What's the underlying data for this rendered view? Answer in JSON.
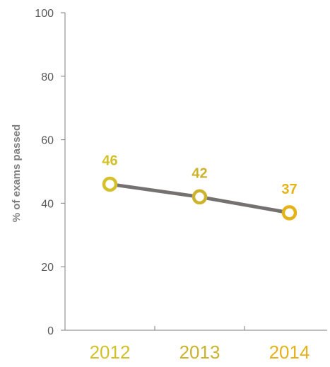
{
  "chart_data": {
    "type": "line",
    "title": "",
    "xlabel": "",
    "ylabel": "% of exams passed",
    "categories": [
      "2012",
      "2013",
      "2014"
    ],
    "series": [
      {
        "values": [
          46,
          42,
          37
        ]
      }
    ],
    "ylim": [
      0,
      100
    ],
    "yticks": [
      0,
      20,
      40,
      60,
      80,
      100
    ],
    "grid": false,
    "legend": "none",
    "colors": {
      "line": "#767171",
      "points": [
        "#d4c12a",
        "#cdb32d",
        "#e6b21a"
      ],
      "category_labels": [
        "#d4c12a",
        "#cdb32d",
        "#e6b21a"
      ],
      "axis": "#7f7f7f",
      "tick_text": "#595959"
    }
  }
}
